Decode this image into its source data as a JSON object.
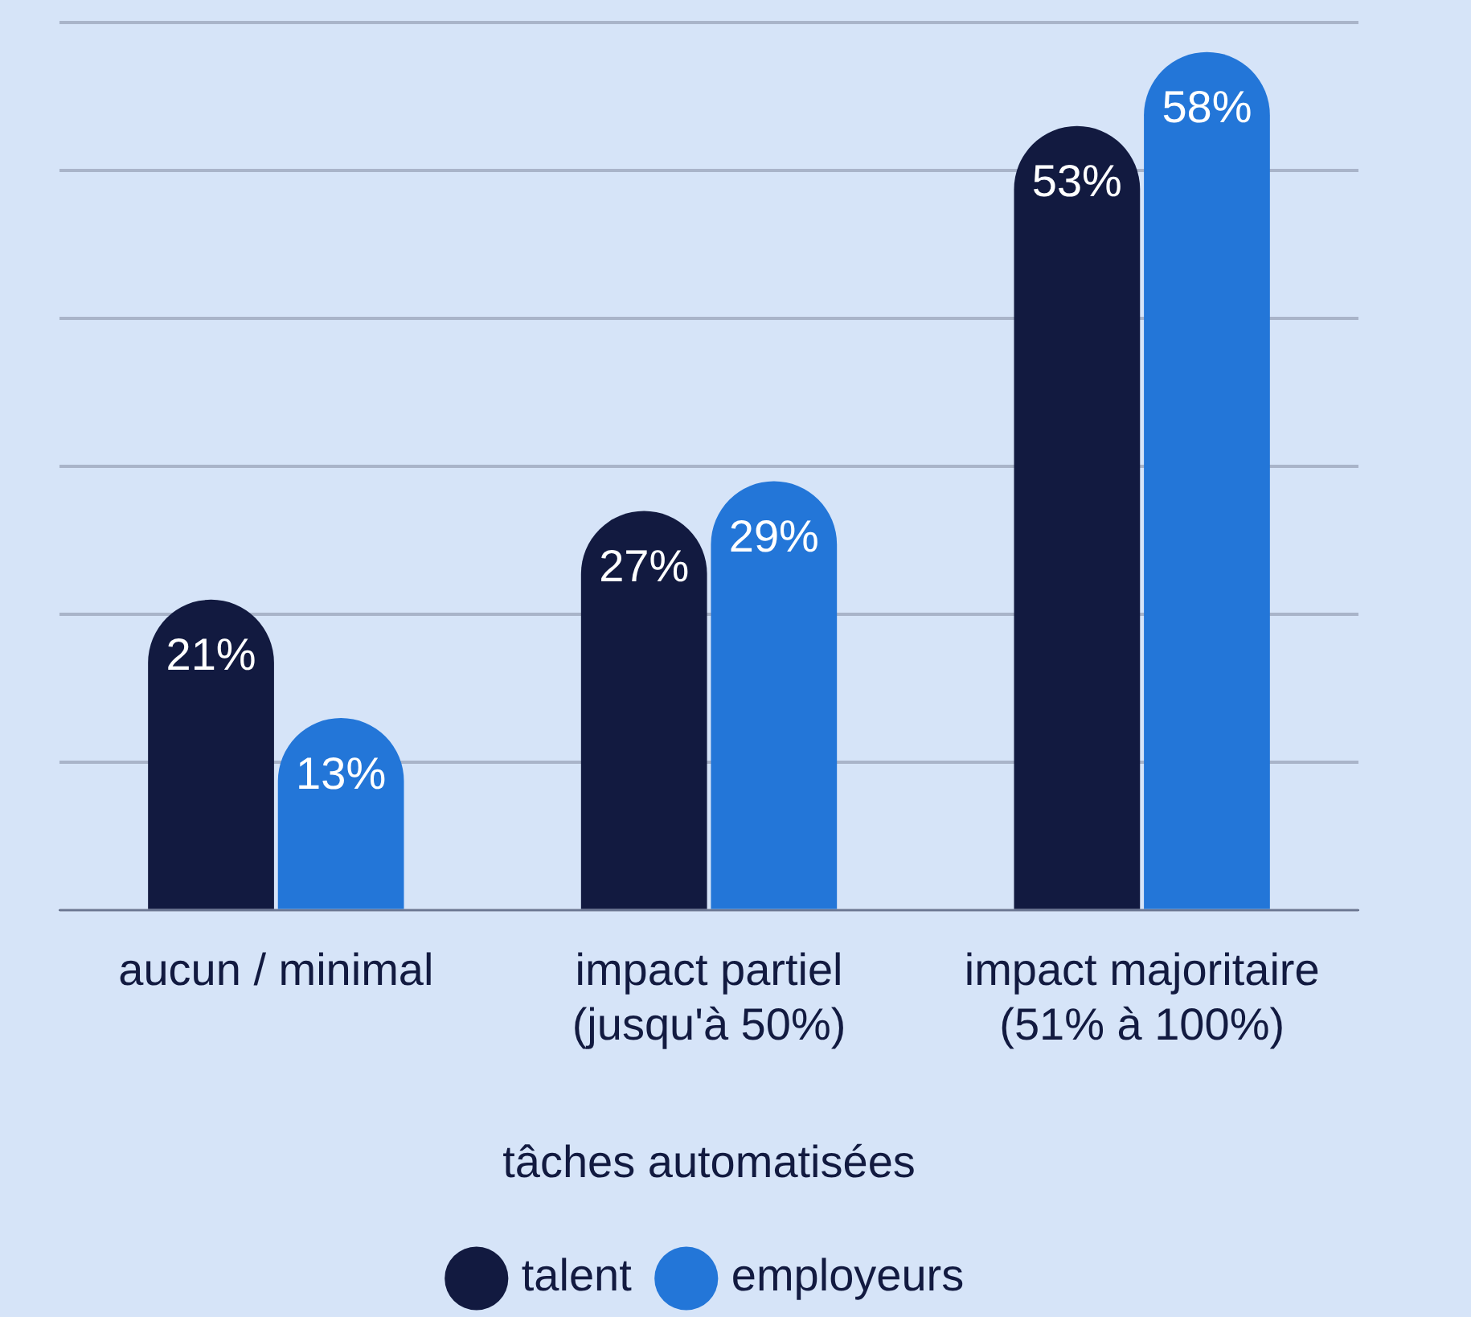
{
  "chart_data": {
    "type": "bar",
    "xlabel": "tâches automatisées",
    "categories": [
      "aucun / minimal",
      "impact partiel (jusqu'à 50%)",
      "impact majoritaire (51% à 100%)"
    ],
    "series": [
      {
        "name": "talent",
        "color": "#121a40",
        "values": [
          21,
          27,
          53
        ],
        "value_labels": [
          "21%",
          "27%",
          "53%"
        ]
      },
      {
        "name": "employeurs",
        "color": "#2376d8",
        "values": [
          13,
          29,
          58
        ],
        "value_labels": [
          "13%",
          "29%",
          "58%"
        ]
      }
    ],
    "tick_labels": "x",
    "grid": "y",
    "legend": "bottom"
  }
}
